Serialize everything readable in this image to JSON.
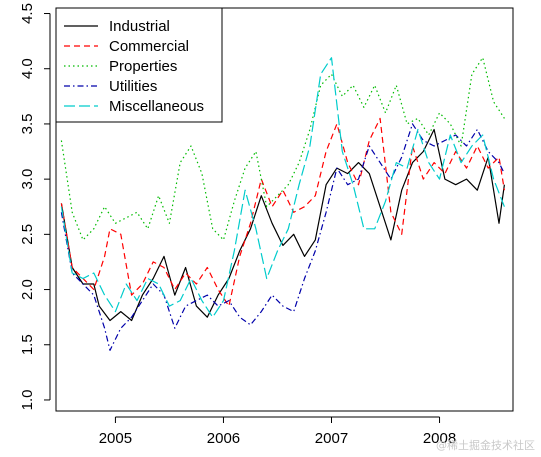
{
  "chart_data": {
    "type": "line",
    "title": "",
    "xlabel": "",
    "ylabel": "",
    "xlim": [
      2004.45,
      2008.68
    ],
    "ylim": [
      0.9,
      4.55
    ],
    "x_ticks": [
      {
        "value": 2005,
        "label": "2005"
      },
      {
        "value": 2006,
        "label": "2006"
      },
      {
        "value": 2007,
        "label": "2007"
      },
      {
        "value": 2008,
        "label": "2008"
      }
    ],
    "y_ticks": [
      {
        "value": 1.0,
        "label": "1.0"
      },
      {
        "value": 1.5,
        "label": "1.5"
      },
      {
        "value": 2.0,
        "label": "2.0"
      },
      {
        "value": 2.5,
        "label": "2.5"
      },
      {
        "value": 3.0,
        "label": "3.0"
      },
      {
        "value": 3.5,
        "label": "3.5"
      },
      {
        "value": 4.0,
        "label": "4.0"
      },
      {
        "value": 4.5,
        "label": "4.5"
      }
    ],
    "grid": false,
    "legend_position": "top-left",
    "series": [
      {
        "name": "Industrial",
        "color": "#000000",
        "dash": "solid",
        "x": [
          2004.5,
          2004.6,
          2004.7,
          2004.8,
          2004.85,
          2004.95,
          2005.05,
          2005.15,
          2005.25,
          2005.35,
          2005.45,
          2005.55,
          2005.65,
          2005.75,
          2005.85,
          2005.95,
          2006.05,
          2006.15,
          2006.25,
          2006.35,
          2006.45,
          2006.55,
          2006.65,
          2006.75,
          2006.85,
          2006.95,
          2007.05,
          2007.15,
          2007.25,
          2007.35,
          2007.45,
          2007.55,
          2007.65,
          2007.75,
          2007.85,
          2007.95,
          2008.05,
          2008.15,
          2008.25,
          2008.35,
          2008.45,
          2008.55,
          2008.6
        ],
        "y": [
          2.78,
          2.2,
          2.05,
          2.05,
          1.85,
          1.72,
          1.8,
          1.72,
          1.95,
          2.1,
          2.3,
          1.95,
          2.2,
          1.85,
          1.75,
          1.95,
          2.1,
          2.35,
          2.55,
          2.85,
          2.6,
          2.4,
          2.5,
          2.3,
          2.45,
          2.95,
          3.1,
          3.05,
          3.15,
          3.05,
          2.75,
          2.45,
          2.9,
          3.15,
          3.25,
          3.45,
          3.0,
          2.95,
          3.0,
          2.9,
          3.2,
          2.6,
          2.95
        ]
      },
      {
        "name": "Commercial",
        "color": "#ff0000",
        "dash": "dashed",
        "x": [
          2004.5,
          2004.6,
          2004.7,
          2004.8,
          2004.9,
          2004.95,
          2005.05,
          2005.15,
          2005.25,
          2005.35,
          2005.45,
          2005.55,
          2005.65,
          2005.75,
          2005.85,
          2005.95,
          2006.05,
          2006.15,
          2006.25,
          2006.35,
          2006.45,
          2006.55,
          2006.65,
          2006.75,
          2006.85,
          2006.95,
          2007.05,
          2007.15,
          2007.25,
          2007.35,
          2007.45,
          2007.55,
          2007.65,
          2007.75,
          2007.85,
          2007.95,
          2008.05,
          2008.15,
          2008.25,
          2008.35,
          2008.45,
          2008.55,
          2008.6
        ],
        "y": [
          2.78,
          2.2,
          2.1,
          2.0,
          2.3,
          2.55,
          2.5,
          1.95,
          2.05,
          2.25,
          2.2,
          2.0,
          2.15,
          2.05,
          2.2,
          2.0,
          1.85,
          2.3,
          2.6,
          3.0,
          2.75,
          2.9,
          2.7,
          2.75,
          2.85,
          3.25,
          3.5,
          3.15,
          2.95,
          3.35,
          3.55,
          2.7,
          2.5,
          3.3,
          3.0,
          3.15,
          3.05,
          3.25,
          3.1,
          3.3,
          3.1,
          3.2,
          2.9
        ]
      },
      {
        "name": "Properties",
        "color": "#00bb00",
        "dash": "dotted",
        "x": [
          2004.5,
          2004.6,
          2004.7,
          2004.8,
          2004.9,
          2005.0,
          2005.1,
          2005.2,
          2005.3,
          2005.4,
          2005.5,
          2005.6,
          2005.7,
          2005.8,
          2005.9,
          2006.0,
          2006.1,
          2006.2,
          2006.3,
          2006.4,
          2006.5,
          2006.6,
          2006.7,
          2006.8,
          2006.9,
          2007.0,
          2007.1,
          2007.2,
          2007.3,
          2007.4,
          2007.5,
          2007.6,
          2007.7,
          2007.8,
          2007.9,
          2008.0,
          2008.1,
          2008.2,
          2008.3,
          2008.4,
          2008.5,
          2008.6
        ],
        "y": [
          3.35,
          2.7,
          2.45,
          2.55,
          2.75,
          2.6,
          2.65,
          2.7,
          2.55,
          2.85,
          2.6,
          3.15,
          3.3,
          3.05,
          2.55,
          2.45,
          2.8,
          3.1,
          3.25,
          2.75,
          2.85,
          2.95,
          3.15,
          3.45,
          3.85,
          3.95,
          3.75,
          3.85,
          3.65,
          3.85,
          3.6,
          3.85,
          3.5,
          3.55,
          3.4,
          3.6,
          3.5,
          3.3,
          3.95,
          4.1,
          3.7,
          3.55
        ]
      },
      {
        "name": "Utilities",
        "color": "#0000aa",
        "dash": "dashdot",
        "x": [
          2004.5,
          2004.6,
          2004.7,
          2004.8,
          2004.9,
          2004.95,
          2005.05,
          2005.15,
          2005.25,
          2005.35,
          2005.45,
          2005.55,
          2005.65,
          2005.75,
          2005.85,
          2005.95,
          2006.05,
          2006.15,
          2006.25,
          2006.35,
          2006.45,
          2006.55,
          2006.65,
          2006.75,
          2006.85,
          2006.95,
          2007.05,
          2007.15,
          2007.25,
          2007.35,
          2007.45,
          2007.55,
          2007.65,
          2007.75,
          2007.85,
          2007.95,
          2008.05,
          2008.15,
          2008.25,
          2008.35,
          2008.45,
          2008.55,
          2008.6
        ],
        "y": [
          2.7,
          2.15,
          2.05,
          1.95,
          1.65,
          1.45,
          1.65,
          1.75,
          1.9,
          2.05,
          1.95,
          1.65,
          1.85,
          1.9,
          1.95,
          1.85,
          1.9,
          1.75,
          1.68,
          1.8,
          1.95,
          1.85,
          1.8,
          2.1,
          2.35,
          2.7,
          3.1,
          2.95,
          3.0,
          3.3,
          3.15,
          3.0,
          3.2,
          3.5,
          3.35,
          3.3,
          3.35,
          3.4,
          3.3,
          3.45,
          3.25,
          3.15,
          3.05
        ]
      },
      {
        "name": "Miscellaneous",
        "color": "#00cccc",
        "dash": "longdash",
        "x": [
          2004.5,
          2004.6,
          2004.7,
          2004.8,
          2004.9,
          2005.0,
          2005.1,
          2005.2,
          2005.3,
          2005.4,
          2005.5,
          2005.6,
          2005.7,
          2005.8,
          2005.9,
          2006.0,
          2006.1,
          2006.2,
          2006.3,
          2006.4,
          2006.5,
          2006.6,
          2006.7,
          2006.8,
          2006.9,
          2007.0,
          2007.1,
          2007.2,
          2007.3,
          2007.4,
          2007.5,
          2007.6,
          2007.7,
          2007.8,
          2007.9,
          2008.0,
          2008.1,
          2008.2,
          2008.3,
          2008.4,
          2008.5,
          2008.6
        ],
        "y": [
          2.75,
          2.15,
          2.1,
          2.15,
          1.95,
          1.8,
          2.05,
          1.9,
          2.1,
          2.05,
          1.85,
          1.9,
          2.1,
          1.9,
          1.75,
          1.9,
          2.35,
          2.9,
          2.55,
          2.1,
          2.35,
          2.55,
          2.95,
          3.3,
          3.95,
          4.1,
          3.25,
          2.95,
          2.55,
          2.55,
          2.8,
          3.15,
          3.1,
          3.45,
          3.15,
          3.0,
          3.4,
          3.15,
          3.3,
          3.4,
          3.0,
          2.75
        ]
      }
    ]
  },
  "watermark": "@稀土掘金技术社区"
}
